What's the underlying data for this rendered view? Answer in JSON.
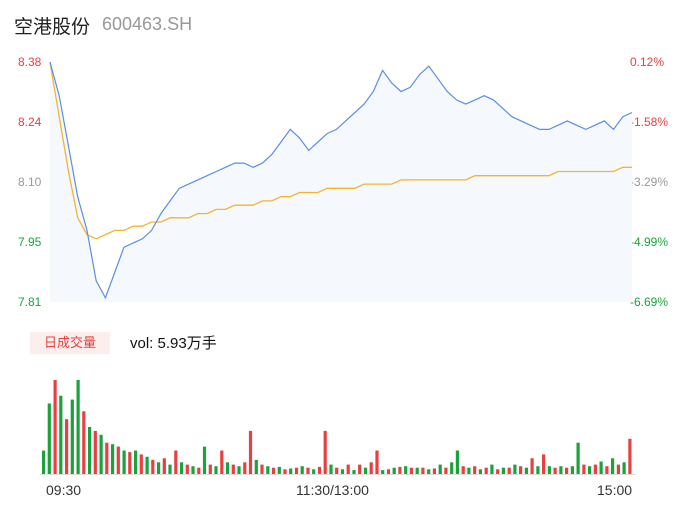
{
  "header": {
    "name": "空港股份",
    "code": "600463.SH"
  },
  "chart_data": {
    "type": "line",
    "price_axis": {
      "ticks": [
        8.38,
        8.24,
        8.1,
        7.95,
        7.81
      ],
      "labels": [
        "8.38",
        "8.24",
        "8.10",
        "7.95",
        "7.81"
      ],
      "colors": [
        "#e84040",
        "#e84040",
        "#999999",
        "#1aa33a",
        "#1aa33a"
      ]
    },
    "pct_axis": {
      "labels": [
        "0.12%",
        "-1.58%",
        "-3.29%",
        "-4.99%",
        "-6.69%"
      ],
      "colors": [
        "#e84040",
        "#e84040",
        "#999999",
        "#1aa33a",
        "#1aa33a"
      ]
    },
    "x_labels": [
      "09:30",
      "11:30/13:00",
      "15:00"
    ],
    "price_series": [
      8.38,
      8.3,
      8.18,
      8.06,
      7.98,
      7.86,
      7.82,
      7.88,
      7.94,
      7.95,
      7.96,
      7.98,
      8.02,
      8.05,
      8.08,
      8.09,
      8.1,
      8.11,
      8.12,
      8.13,
      8.14,
      8.14,
      8.13,
      8.14,
      8.16,
      8.19,
      8.22,
      8.2,
      8.17,
      8.19,
      8.21,
      8.22,
      8.24,
      8.26,
      8.28,
      8.31,
      8.36,
      8.33,
      8.31,
      8.32,
      8.35,
      8.37,
      8.34,
      8.31,
      8.29,
      8.28,
      8.29,
      8.3,
      8.29,
      8.27,
      8.25,
      8.24,
      8.23,
      8.22,
      8.22,
      8.23,
      8.24,
      8.23,
      8.22,
      8.23,
      8.24,
      8.22,
      8.25,
      8.26
    ],
    "avg_series": [
      8.38,
      8.25,
      8.12,
      8.01,
      7.97,
      7.96,
      7.97,
      7.98,
      7.98,
      7.99,
      7.99,
      8.0,
      8.0,
      8.01,
      8.01,
      8.01,
      8.02,
      8.02,
      8.03,
      8.03,
      8.04,
      8.04,
      8.04,
      8.05,
      8.05,
      8.06,
      8.06,
      8.07,
      8.07,
      8.07,
      8.08,
      8.08,
      8.08,
      8.08,
      8.09,
      8.09,
      8.09,
      8.09,
      8.1,
      8.1,
      8.1,
      8.1,
      8.1,
      8.1,
      8.1,
      8.1,
      8.11,
      8.11,
      8.11,
      8.11,
      8.11,
      8.11,
      8.11,
      8.11,
      8.11,
      8.12,
      8.12,
      8.12,
      8.12,
      8.12,
      8.12,
      8.12,
      8.13,
      8.13
    ],
    "volume": {
      "label": "日成交量",
      "total_text": "vol: 5.93万手",
      "values": [
        30,
        90,
        120,
        100,
        70,
        95,
        120,
        80,
        60,
        55,
        50,
        40,
        38,
        35,
        30,
        28,
        30,
        25,
        22,
        18,
        15,
        20,
        12,
        30,
        15,
        12,
        10,
        8,
        35,
        12,
        10,
        30,
        15,
        12,
        10,
        15,
        55,
        18,
        12,
        10,
        8,
        9,
        6,
        7,
        8,
        10,
        8,
        6,
        9,
        55,
        12,
        8,
        6,
        12,
        5,
        12,
        8,
        15,
        30,
        5,
        6,
        8,
        9,
        10,
        8,
        8,
        8,
        6,
        7,
        12,
        8,
        15,
        30,
        10,
        8,
        10,
        6,
        8,
        12,
        6,
        8,
        8,
        12,
        10,
        8,
        20,
        10,
        25,
        10,
        8,
        10,
        8,
        10,
        40,
        12,
        10,
        12,
        16,
        10,
        20,
        12,
        15,
        45
      ],
      "colors": [
        "g",
        "g",
        "r",
        "g",
        "r",
        "g",
        "g",
        "r",
        "g",
        "r",
        "g",
        "r",
        "g",
        "r",
        "g",
        "r",
        "g",
        "r",
        "g",
        "r",
        "g",
        "r",
        "g",
        "r",
        "g",
        "r",
        "g",
        "r",
        "g",
        "r",
        "g",
        "r",
        "g",
        "r",
        "g",
        "r",
        "r",
        "g",
        "r",
        "g",
        "r",
        "g",
        "r",
        "g",
        "r",
        "g",
        "r",
        "g",
        "r",
        "r",
        "g",
        "r",
        "g",
        "r",
        "g",
        "r",
        "g",
        "r",
        "r",
        "g",
        "r",
        "g",
        "r",
        "g",
        "r",
        "g",
        "r",
        "g",
        "r",
        "g",
        "r",
        "g",
        "g",
        "r",
        "g",
        "r",
        "g",
        "r",
        "g",
        "r",
        "g",
        "r",
        "g",
        "r",
        "g",
        "r",
        "g",
        "r",
        "g",
        "r",
        "g",
        "r",
        "g",
        "g",
        "r",
        "g",
        "r",
        "g",
        "r",
        "g",
        "r",
        "g",
        "r"
      ]
    },
    "colors": {
      "price_line": "#5b8ee6",
      "avg_line": "#f2b530",
      "up": "#e84040",
      "down": "#1aa33a",
      "area": "#f5f8fd"
    }
  }
}
